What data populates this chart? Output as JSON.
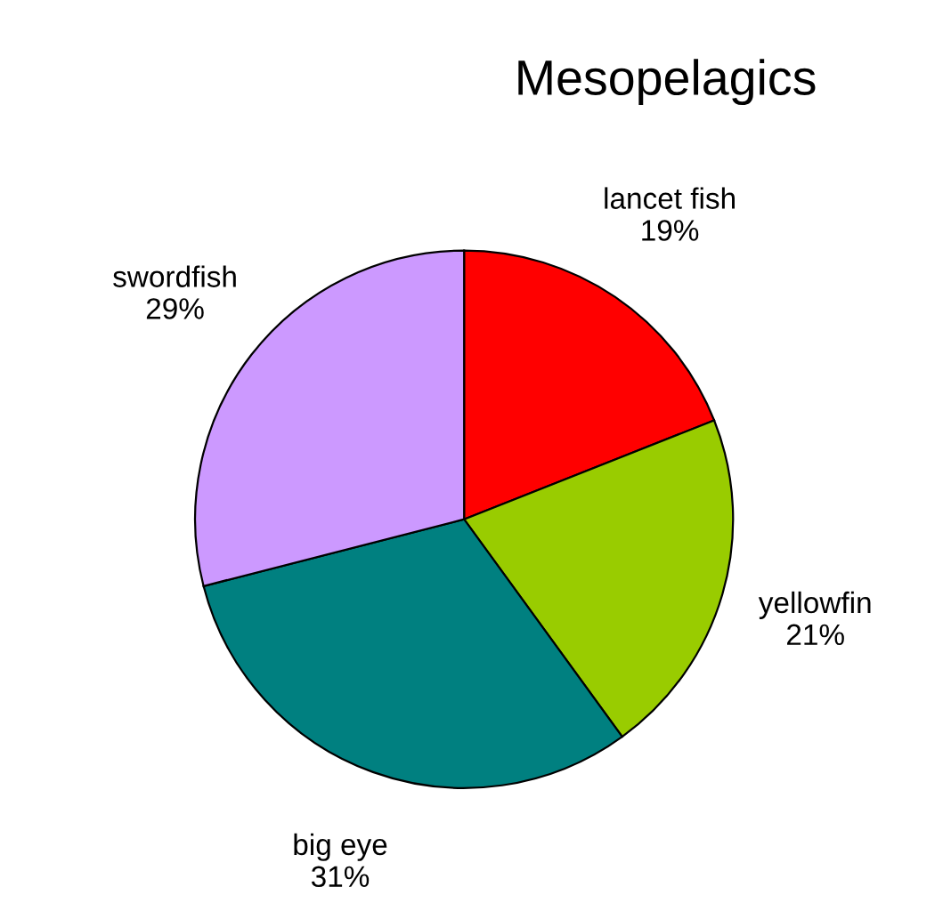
{
  "chart_data": {
    "type": "pie",
    "title": "Mesopelagics",
    "categories": [
      "lancet fish",
      "yellowfin",
      "big eye",
      "swordfish"
    ],
    "values": [
      19,
      21,
      31,
      29
    ],
    "value_labels": [
      "19%",
      "21%",
      "31%",
      "29%"
    ],
    "colors": [
      "#ff0000",
      "#99cc00",
      "#008080",
      "#cc99ff"
    ],
    "legend": false
  }
}
